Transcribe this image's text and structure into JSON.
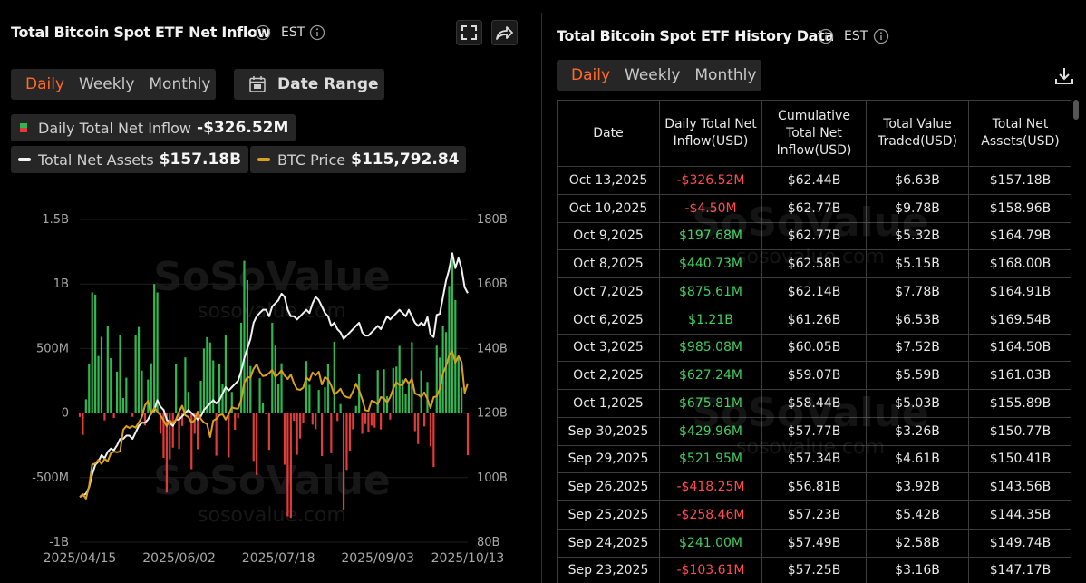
{
  "chart_data": {
    "type": "combo",
    "title": "Total Bitcoin Spot ETF Net Inflow",
    "timezone": "EST",
    "tabs": [
      "Daily",
      "Weekly",
      "Monthly"
    ],
    "date_range": "Date Range",
    "watermark": "SoSoValue",
    "watermark_url": "sosovalue.com",
    "grid": true,
    "categories": [
      "2025/04/15",
      null,
      null,
      null,
      null,
      null,
      null,
      null,
      null,
      null,
      null,
      null,
      null,
      null,
      null,
      null,
      null,
      null,
      null,
      null,
      null,
      null,
      null,
      null,
      null,
      null,
      null,
      null,
      null,
      null,
      null,
      null,
      "2025/06/02",
      null,
      null,
      null,
      null,
      null,
      null,
      null,
      null,
      null,
      null,
      null,
      null,
      null,
      null,
      null,
      null,
      null,
      null,
      null,
      null,
      null,
      null,
      null,
      null,
      null,
      null,
      null,
      null,
      null,
      null,
      null,
      "2025/07/18",
      null,
      null,
      null,
      null,
      null,
      null,
      null,
      null,
      null,
      null,
      null,
      null,
      null,
      null,
      null,
      null,
      null,
      null,
      null,
      null,
      null,
      null,
      null,
      null,
      null,
      null,
      null,
      null,
      null,
      null,
      null,
      "2025/09/03",
      null,
      null,
      null,
      null,
      null,
      null,
      null,
      null,
      null,
      null,
      null,
      null,
      null,
      null,
      null,
      null,
      null,
      null,
      null,
      null,
      null,
      null,
      null,
      null,
      null,
      null,
      null,
      null,
      "2025/10/13"
    ],
    "ylim": [
      -1000,
      1500
    ],
    "yticks": [
      {
        "value": -1000,
        "label": "-1B"
      },
      {
        "value": -500,
        "label": "-500M"
      },
      0,
      {
        "value": 500,
        "label": "500M"
      },
      {
        "value": 1000,
        "label": "1B"
      },
      {
        "value": 1500,
        "label": "1.5B"
      }
    ],
    "y2lim": [
      80,
      180
    ],
    "y2ticks": [
      {
        "value": 80,
        "label": "80B"
      },
      {
        "value": 100,
        "label": "100B"
      },
      {
        "value": 120,
        "label": "120B"
      },
      {
        "value": 140,
        "label": "140B"
      },
      {
        "value": 160,
        "label": "160B"
      },
      {
        "value": 180,
        "label": "180B"
      }
    ],
    "y3lim": [
      72000,
      161000
    ],
    "series": [
      {
        "name": "Daily Total Net Inflow",
        "current": "-$326.52M",
        "type": "bar",
        "colors": {
          "positive": "#2fb84f",
          "negative": "#e23b3b"
        },
        "values": [
          -30,
          -170,
          107,
          381,
          936,
          917,
          442,
          591,
          -56,
          675,
          425,
          -38,
          321,
          608,
          117,
          274,
          5,
          -29,
          608,
          667,
          329,
          -96,
          260,
          386,
          1000,
          935,
          -160,
          -347,
          -616,
          -358,
          -268,
          378,
          -278,
          -100,
          431,
          164,
          -435,
          -160,
          -280,
          250,
          500,
          588,
          547,
          408,
          -330,
          380,
          222,
          602,
          -342,
          164,
          -130,
          -40,
          700,
          1180,
          1030,
          364,
          -370,
          -480,
          270,
          80,
          -10,
          -285,
          700,
          522,
          227,
          386,
          -400,
          -800,
          -812,
          -60,
          -323,
          -197,
          -79,
          403,
          219,
          -90,
          -125,
          179,
          -333,
          200,
          380,
          -311,
          553,
          -61,
          70,
          -754,
          -440,
          -291,
          -126,
          55,
          303,
          -161,
          -85,
          -151,
          -97,
          -113,
          333,
          -127,
          340,
          130,
          -50,
          350,
          360,
          520,
          260,
          150,
          223,
          550,
          -140,
          -240,
          330,
          -103.61,
          241.0,
          -258.46,
          -418.25,
          521.95,
          429.96,
          675.81,
          627.24,
          985.08,
          1210,
          875.61,
          440.73,
          197.68,
          -4.5,
          -326.52
        ]
      },
      {
        "name": "Total Net Assets",
        "current": "$157.18B",
        "type": "line",
        "axis": "y2",
        "color": "#f2f2f2",
        "values": [
          94,
          94.5,
          95,
          97,
          101,
          104,
          105,
          107,
          106,
          108,
          109,
          108.5,
          110,
          112,
          112,
          113,
          113,
          112,
          114,
          116,
          117,
          117,
          118,
          120,
          121,
          124,
          122,
          121,
          118,
          117,
          116,
          118,
          118,
          119,
          120,
          121,
          120,
          119,
          118,
          119,
          121,
          122,
          123,
          124,
          123,
          124,
          126,
          128,
          127,
          128,
          129,
          130,
          133,
          137,
          140,
          143,
          148,
          150,
          151,
          152,
          152,
          150,
          153,
          154,
          155,
          157,
          156,
          152,
          150,
          150,
          149,
          150,
          151,
          152,
          151,
          154,
          156,
          155,
          153,
          151,
          150,
          147,
          148,
          146,
          145,
          143,
          144,
          145,
          146,
          147,
          148,
          145,
          144,
          144,
          145,
          146,
          147,
          146,
          148,
          150,
          149,
          150,
          151,
          152,
          151,
          150,
          152,
          150,
          148,
          147,
          148,
          147.17,
          149.74,
          144.35,
          143.56,
          150.41,
          150.77,
          155.89,
          161.03,
          164.5,
          169.54,
          164.91,
          168.0,
          164.79,
          158.96,
          157.18
        ]
      },
      {
        "name": "BTC Price",
        "current": "$115,792.84",
        "type": "line",
        "axis": "y3",
        "color": "#d9a01e",
        "values": [
          84500,
          85200,
          84000,
          87500,
          93400,
          93700,
          94700,
          93600,
          95000,
          94300,
          96500,
          97000,
          96800,
          97000,
          103000,
          104000,
          103500,
          104000,
          103600,
          105000,
          106500,
          109700,
          111000,
          107300,
          109000,
          108000,
          107000,
          105600,
          104000,
          105600,
          104700,
          105800,
          108000,
          109600,
          107000,
          106500,
          105000,
          105600,
          108000,
          106000,
          105000,
          104600,
          101000,
          105500,
          106000,
          107000,
          107300,
          105800,
          107300,
          109200,
          108900,
          108800,
          111200,
          116000,
          117500,
          117400,
          119800,
          121000,
          119000,
          117800,
          118000,
          118600,
          119500,
          117600,
          118300,
          119400,
          117900,
          117000,
          118200,
          115800,
          114200,
          114000,
          114600,
          117400,
          116600,
          118800,
          118000,
          119000,
          115500,
          117500,
          116900,
          115200,
          112700,
          113400,
          114300,
          112500,
          112000,
          111800,
          113600,
          115700,
          113900,
          111400,
          108400,
          108200,
          111000,
          110700,
          110000,
          112000,
          111700,
          110500,
          112000,
          114400,
          116100,
          115300,
          115300,
          117000,
          115700,
          117100,
          113000,
          112700,
          112000,
          113300,
          111500,
          109000,
          112000,
          112200,
          114300,
          118600,
          120500,
          123500,
          124700,
          121500,
          123300,
          121700,
          113200,
          115792.84
        ]
      }
    ]
  },
  "history": {
    "title": "Total Bitcoin Spot ETF History Data",
    "timezone": "EST",
    "tabs": [
      "Daily",
      "Weekly",
      "Monthly"
    ],
    "header": [
      [
        "Date"
      ],
      [
        "Daily Total Net",
        "Inflow(USD)"
      ],
      [
        "Cumulative",
        "Total Net",
        "Inflow(USD)"
      ],
      [
        "Total Value",
        "Traded(USD)"
      ],
      [
        "Total Net",
        "Assets(USD)"
      ]
    ],
    "rows": [
      [
        "Oct 13,2025",
        "-$326.52M",
        "$62.44B",
        "$6.63B",
        "$157.18B"
      ],
      [
        "Oct 10,2025",
        "-$4.50M",
        "$62.77B",
        "$9.78B",
        "$158.96B"
      ],
      [
        "Oct 9,2025",
        "$197.68M",
        "$62.77B",
        "$5.32B",
        "$164.79B"
      ],
      [
        "Oct 8,2025",
        "$440.73M",
        "$62.58B",
        "$5.15B",
        "$168.00B"
      ],
      [
        "Oct 7,2025",
        "$875.61M",
        "$62.14B",
        "$7.78B",
        "$164.91B"
      ],
      [
        "Oct 6,2025",
        "$1.21B",
        "$61.26B",
        "$6.53B",
        "$169.54B"
      ],
      [
        "Oct 3,2025",
        "$985.08M",
        "$60.05B",
        "$7.52B",
        "$164.50B"
      ],
      [
        "Oct 2,2025",
        "$627.24M",
        "$59.07B",
        "$5.59B",
        "$161.03B"
      ],
      [
        "Oct 1,2025",
        "$675.81M",
        "$58.44B",
        "$5.03B",
        "$155.89B"
      ],
      [
        "Sep 30,2025",
        "$429.96M",
        "$57.77B",
        "$3.26B",
        "$150.77B"
      ],
      [
        "Sep 29,2025",
        "$521.95M",
        "$57.34B",
        "$4.61B",
        "$150.41B"
      ],
      [
        "Sep 26,2025",
        "-$418.25M",
        "$56.81B",
        "$3.92B",
        "$143.56B"
      ],
      [
        "Sep 25,2025",
        "-$258.46M",
        "$57.23B",
        "$5.42B",
        "$144.35B"
      ],
      [
        "Sep 24,2025",
        "$241.00M",
        "$57.49B",
        "$2.58B",
        "$149.74B"
      ],
      [
        "Sep 23,2025",
        "-$103.61M",
        "$57.25B",
        "$3.16B",
        "$147.17B"
      ]
    ]
  }
}
